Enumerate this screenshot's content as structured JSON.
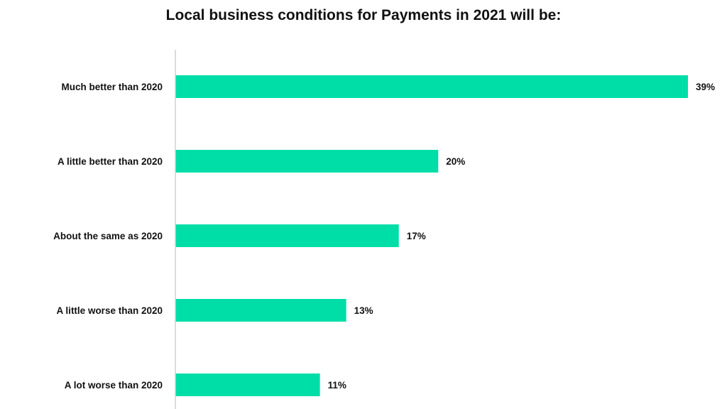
{
  "chart_data": {
    "type": "bar",
    "orientation": "horizontal",
    "title": "Local business conditions for Payments in 2021 will be:",
    "categories": [
      "Much better than 2020",
      "A little better than 2020",
      "About the same as 2020",
      "A little worse than 2020",
      "A lot worse than 2020"
    ],
    "values": [
      39,
      20,
      17,
      13,
      11
    ],
    "value_labels": [
      "39%",
      "20%",
      "17%",
      "13%",
      "11%"
    ],
    "unit": "%",
    "xlim": [
      0,
      39
    ],
    "grid": false,
    "legend": "none",
    "bar_color": "#00dea8",
    "axis_color": "#d0d0d0"
  }
}
